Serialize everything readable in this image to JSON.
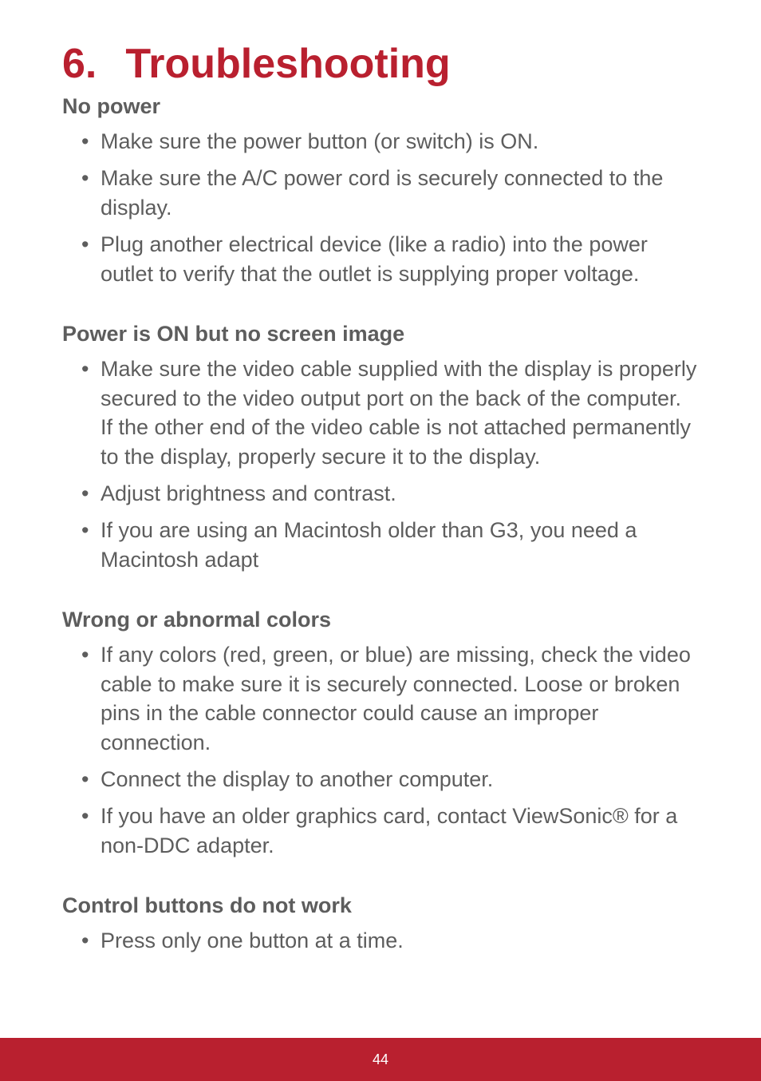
{
  "colors": {
    "accent": "#b9202f",
    "body_text": "#5d5d5d",
    "background": "#ffffff",
    "footer_bg": "#b9202f",
    "footer_text": "#ffffff"
  },
  "typography": {
    "title_fontsize": 52,
    "subhead_fontsize": 27,
    "body_fontsize": 27,
    "footer_fontsize": 18,
    "font_family": "Arial"
  },
  "title": {
    "number": "6.",
    "text": "Troubleshooting"
  },
  "sections": [
    {
      "heading": "No power",
      "items": [
        "Make sure the power button (or switch) is ON.",
        "Make sure the A/C power cord is securely connected to the display.",
        "Plug another electrical device (like a radio) into the power outlet to verify that the outlet is supplying proper voltage."
      ]
    },
    {
      "heading": "Power is ON but no screen image",
      "items": [
        "Make sure the video cable supplied with the display is properly secured to the video output port on the back of the computer. If the other end of the video cable is not attached permanently to the display, properly secure it to the display.",
        "Adjust brightness and contrast.",
        "If you are using an Macintosh older than G3, you need a Macintosh adapt"
      ]
    },
    {
      "heading": "Wrong or abnormal colors",
      "items": [
        "If any colors (red, green, or blue) are missing, check the video cable to make sure it is securely connected. Loose or broken pins in the cable connector could cause an improper connection.",
        "Connect the display to another computer.",
        "If you have an older graphics card, contact ViewSonic® for a non-DDC adapter."
      ]
    },
    {
      "heading": "Control buttons do not work",
      "items": [
        "Press only one button at a time."
      ]
    }
  ],
  "footer": {
    "page_number": "44"
  }
}
